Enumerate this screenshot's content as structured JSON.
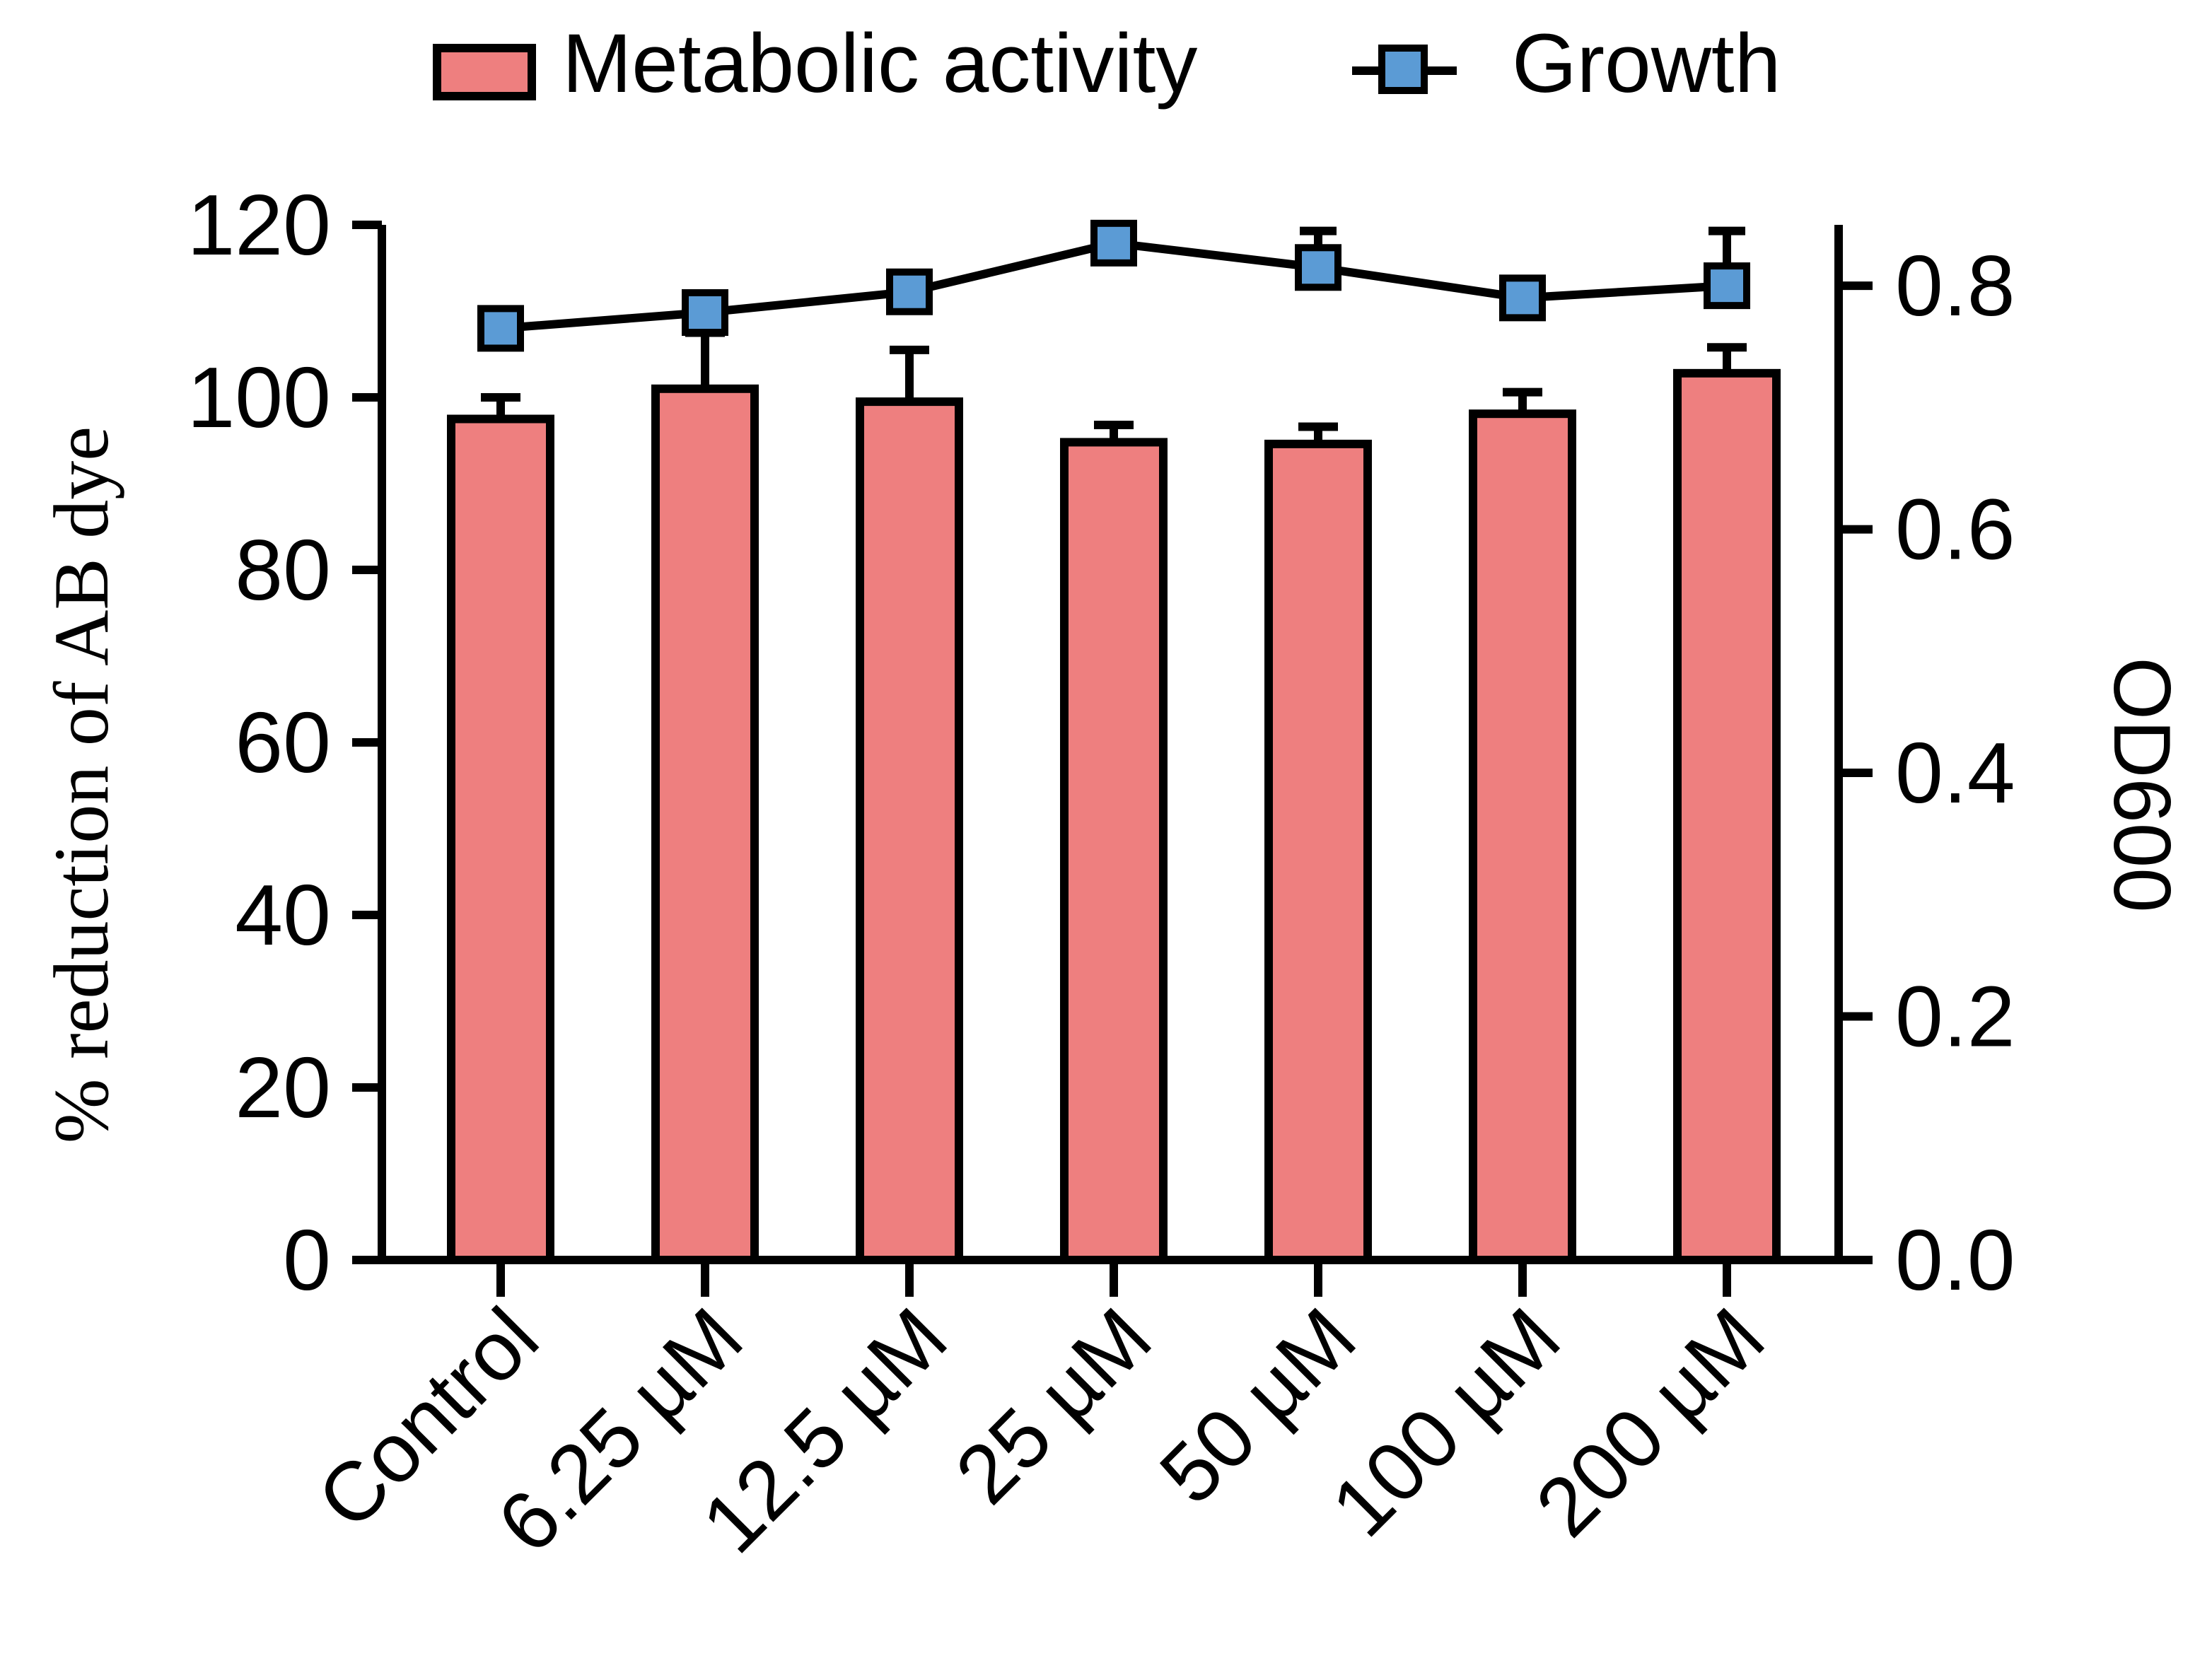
{
  "chart_data": {
    "type": "bar",
    "categories": [
      "Control",
      "6.25 µM",
      "12.5 µM",
      "25 µM",
      "50 µM",
      "100 µM",
      "200 µM"
    ],
    "series": [
      {
        "name": "Metabolic activity",
        "kind": "bar",
        "axis": "left",
        "values": [
          97.5,
          101,
          99.5,
          94.8,
          94.6,
          98.1,
          102.8
        ],
        "errors": [
          2.5,
          6.5,
          6.0,
          2.0,
          2.0,
          2.5,
          3.0
        ]
      },
      {
        "name": "Growth",
        "kind": "line",
        "axis": "right",
        "values": [
          0.765,
          0.778,
          0.795,
          0.835,
          0.815,
          0.79,
          0.8
        ],
        "errors": [
          0.005,
          0.005,
          0.005,
          0.005,
          0.03,
          0.015,
          0.045
        ]
      }
    ],
    "ylabel": "% reduction of AB dye",
    "y2label": "OD600",
    "ylim": [
      0,
      120
    ],
    "y2lim": [
      0,
      0.85
    ],
    "yticks": [
      "0",
      "20",
      "40",
      "60",
      "80",
      "100",
      "120"
    ],
    "y2ticks": [
      "0.0",
      "0.2",
      "0.4",
      "0.6",
      "0.8"
    ],
    "legend": "top-center",
    "colors": {
      "bar_fill": "#EE7F7F",
      "marker_fill": "#5B9BD5",
      "stroke": "#000000"
    }
  }
}
